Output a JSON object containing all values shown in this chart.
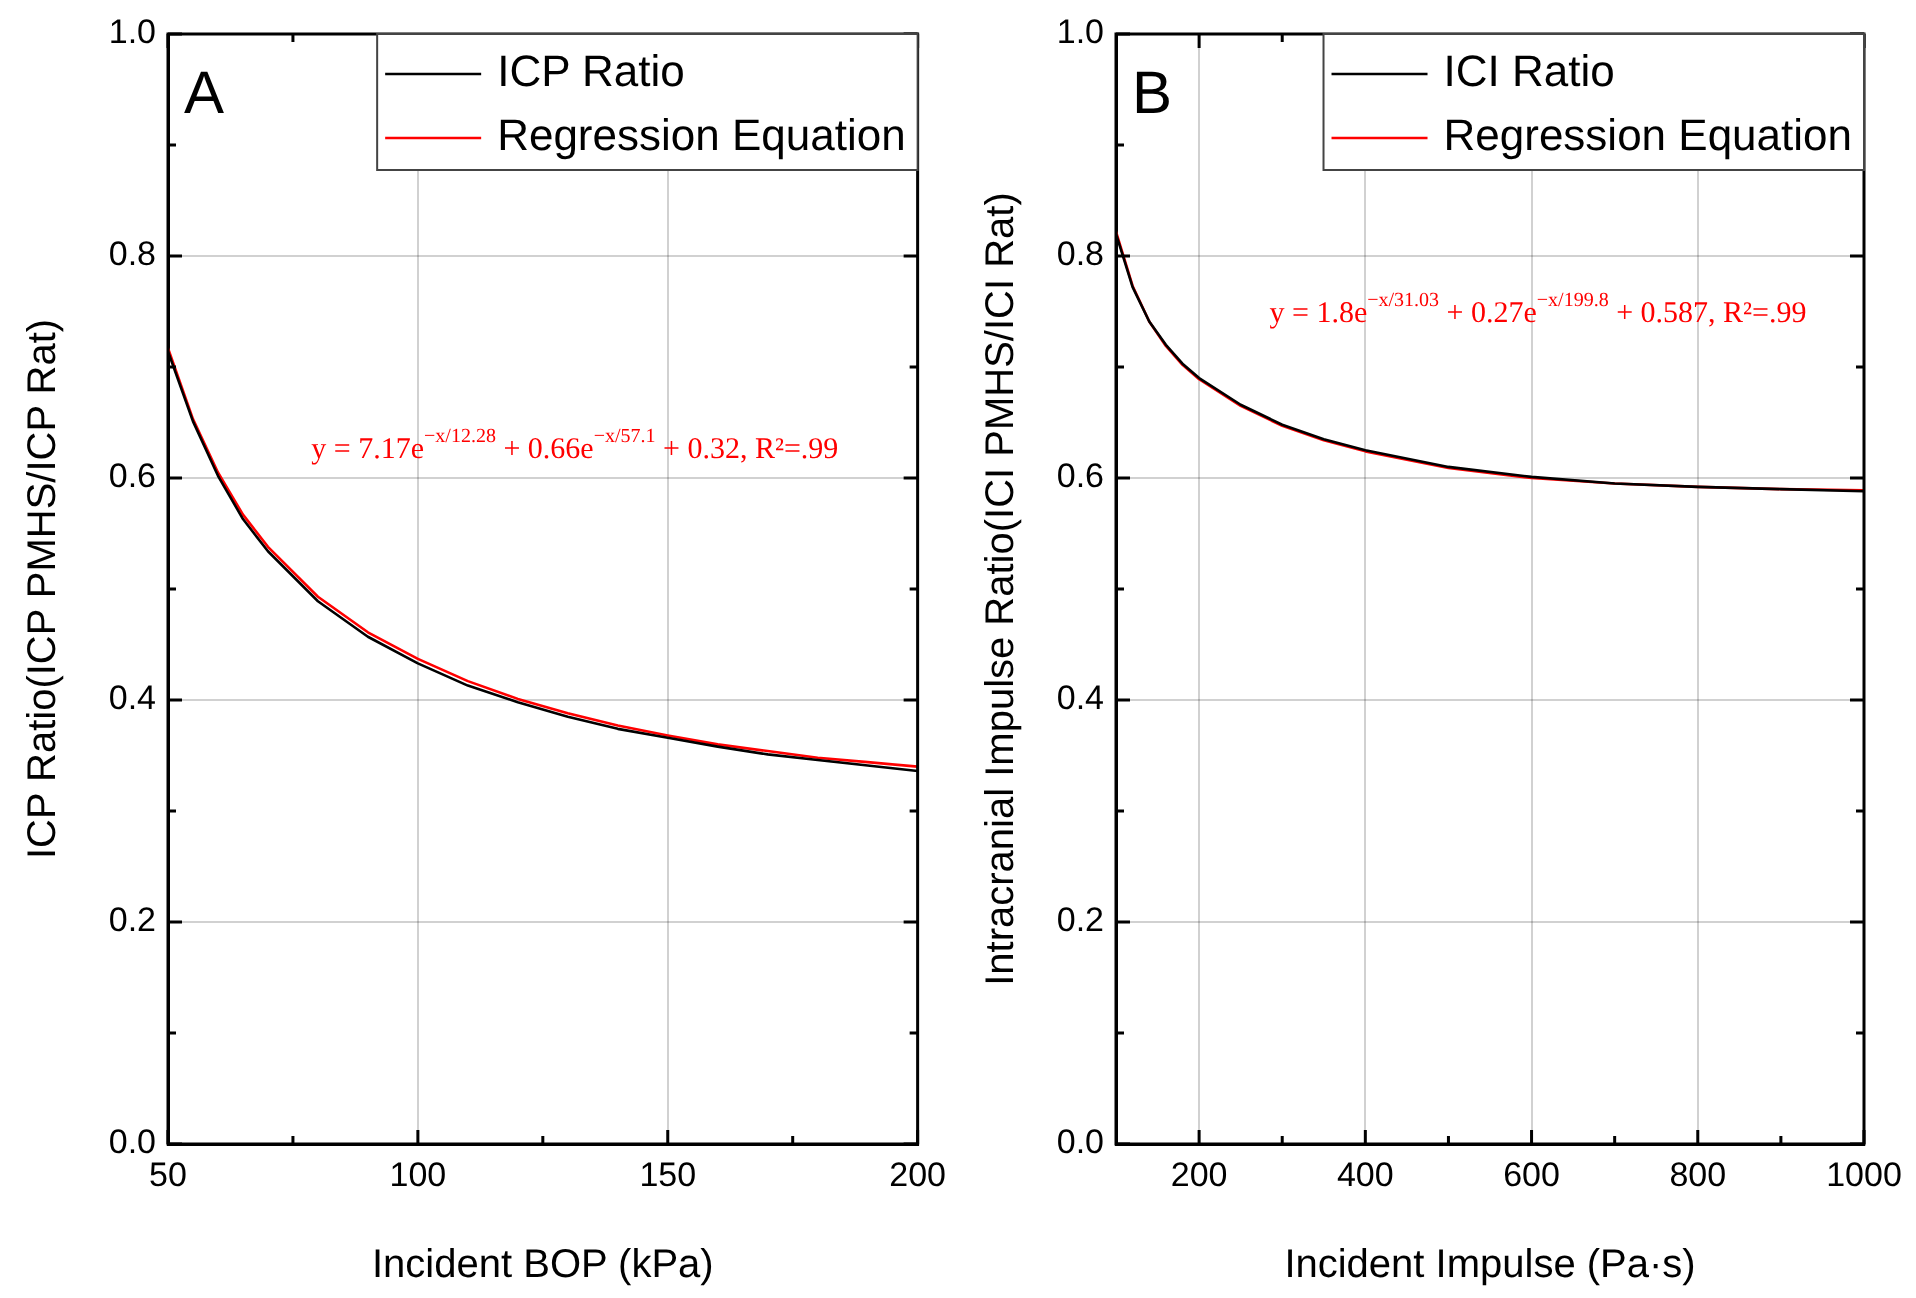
{
  "chart_data": [
    {
      "type": "line",
      "xlabel": "Incident BOP (kPa)",
      "ylabel": "ICP Ratio(ICP PMHS/ICP Rat)",
      "annotations": [
        "A",
        "y = 7.17e$^{−x/12.28}$ + 0.66e$^{−x/57.1}$ + 0.32, R²=.99"
      ],
      "x": [
        50,
        55,
        60,
        65,
        70,
        80,
        90,
        100,
        110,
        120,
        130,
        140,
        150,
        160,
        170,
        180,
        190,
        200
      ],
      "series": [
        {
          "name": "ICP Ratio",
          "color": "#000000",
          "values": [
            0.714,
            0.651,
            0.602,
            0.563,
            0.534,
            0.489,
            0.457,
            0.433,
            0.413,
            0.398,
            0.385,
            0.374,
            0.366,
            0.358,
            0.351,
            0.346,
            0.341,
            0.336
          ]
        },
        {
          "name": "Regression Equation",
          "color": "#ff0000",
          "values": [
            0.717,
            0.653,
            0.605,
            0.567,
            0.538,
            0.493,
            0.461,
            0.437,
            0.417,
            0.401,
            0.388,
            0.377,
            0.368,
            0.36,
            0.354,
            0.348,
            0.344,
            0.34
          ]
        }
      ],
      "xlim": [
        50,
        200
      ],
      "xticks": [
        50,
        {
          "value": 75,
          "label": null
        },
        100,
        {
          "value": 125,
          "label": null
        },
        150,
        {
          "value": 175,
          "label": null
        },
        200
      ],
      "ylim": [
        0,
        1
      ],
      "yticks": [
        {
          "value": 0,
          "label": "0.0"
        },
        {
          "value": 0.1,
          "label": null
        },
        0.2,
        {
          "value": 0.3,
          "label": null
        },
        0.4,
        {
          "value": 0.5,
          "label": null
        },
        0.6,
        {
          "value": 0.7,
          "label": null
        },
        0.8,
        {
          "value": 0.9,
          "label": null
        },
        {
          "value": 1,
          "label": "1.0"
        }
      ],
      "grid": true,
      "legend": "top right",
      "marker": "none",
      "line_style": "solid"
    },
    {
      "type": "line",
      "xlabel": "Incident Impulse (Pa·s)",
      "ylabel": "Intracranial Impulse Ratio(ICI PMHS/ICI Rat)",
      "annotations": [
        "B",
        "y = 1.8e$^{−x/31.03}$ + 0.27e$^{−x/199.8}$ + 0.587, R²=.99"
      ],
      "x": [
        100,
        120,
        140,
        160,
        180,
        200,
        250,
        300,
        350,
        400,
        500,
        600,
        700,
        800,
        900,
        1000
      ],
      "series": [
        {
          "name": "ICI Ratio",
          "color": "#000000",
          "values": [
            0.82,
            0.772,
            0.741,
            0.72,
            0.703,
            0.69,
            0.666,
            0.648,
            0.635,
            0.625,
            0.61,
            0.601,
            0.595,
            0.592,
            0.59,
            0.588
          ]
        },
        {
          "name": "Regression Equation",
          "color": "#ff0000",
          "values": [
            0.822,
            0.773,
            0.741,
            0.719,
            0.702,
            0.689,
            0.665,
            0.647,
            0.634,
            0.624,
            0.609,
            0.6,
            0.595,
            0.592,
            0.59,
            0.589
          ]
        }
      ],
      "xlim": [
        100,
        1000
      ],
      "xticks": [
        200,
        {
          "value": 300,
          "label": null
        },
        400,
        {
          "value": 500,
          "label": null
        },
        600,
        {
          "value": 700,
          "label": null
        },
        800,
        {
          "value": 900,
          "label": null
        },
        1000
      ],
      "ylim": [
        0,
        1
      ],
      "yticks": [
        {
          "value": 0,
          "label": "0.0"
        },
        {
          "value": 0.1,
          "label": null
        },
        0.2,
        {
          "value": 0.3,
          "label": null
        },
        0.4,
        {
          "value": 0.5,
          "label": null
        },
        0.6,
        {
          "value": 0.7,
          "label": null
        },
        0.8,
        {
          "value": 0.9,
          "label": null
        },
        {
          "value": 1,
          "label": "1.0"
        }
      ],
      "grid": true,
      "legend": "top right",
      "marker": "none",
      "line_style": "solid"
    }
  ]
}
